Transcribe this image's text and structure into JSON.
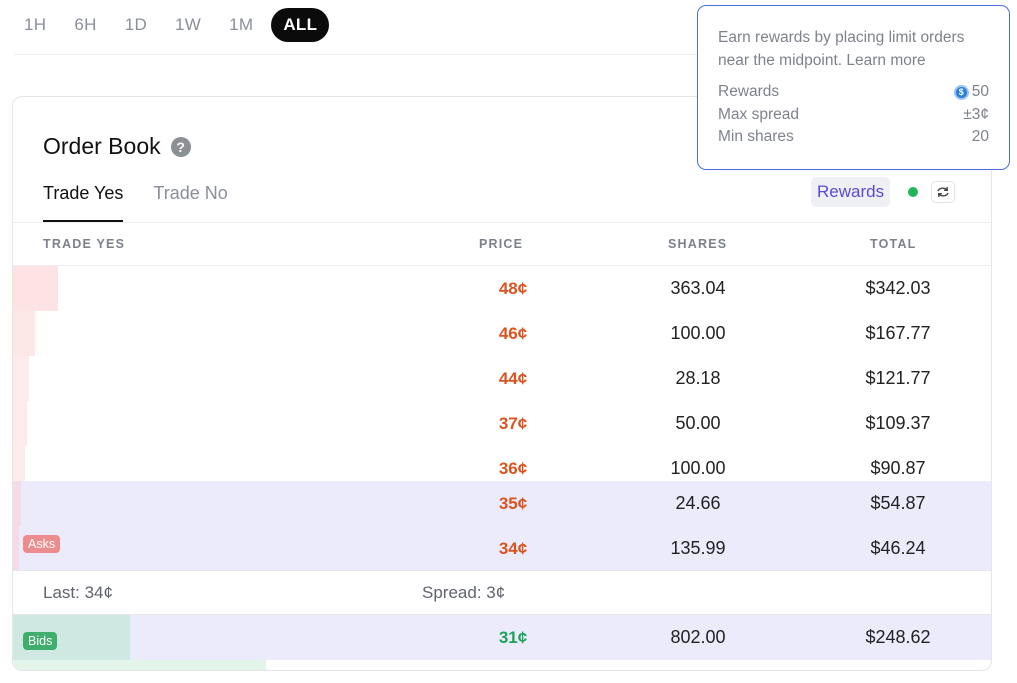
{
  "timeframes": [
    "1H",
    "6H",
    "1D",
    "1W",
    "1M",
    "ALL"
  ],
  "active_timeframe": "ALL",
  "order_book": {
    "title": "Order Book",
    "tabs": [
      "Trade Yes",
      "Trade No"
    ],
    "active_tab": "Trade Yes",
    "rewards_label": "Rewards",
    "columns": [
      "TRADE YES",
      "PRICE",
      "SHARES",
      "TOTAL"
    ],
    "asks": [
      {
        "price": "48¢",
        "shares": "363.04",
        "total": "$342.03"
      },
      {
        "price": "46¢",
        "shares": "100.00",
        "total": "$167.77"
      },
      {
        "price": "44¢",
        "shares": "28.18",
        "total": "$121.77"
      },
      {
        "price": "37¢",
        "shares": "50.00",
        "total": "$109.37"
      },
      {
        "price": "36¢",
        "shares": "100.00",
        "total": "$90.87"
      },
      {
        "price": "35¢",
        "shares": "24.66",
        "total": "$54.87"
      },
      {
        "price": "34¢",
        "shares": "135.99",
        "total": "$46.24"
      }
    ],
    "asks_badge": "Asks",
    "last": "Last: 34¢",
    "spread": "Spread: 3¢",
    "bids": [
      {
        "price": "31¢",
        "shares": "802.00",
        "total": "$248.62"
      }
    ],
    "bids_badge": "Bids"
  },
  "rewards_popover": {
    "text_line1": "Earn rewards by placing limit orders",
    "text_line2": "near the midpoint. Learn more",
    "rewards_label": "Rewards",
    "rewards_value": "50",
    "max_spread_label": "Max spread",
    "max_spread_value": "±3¢",
    "min_shares_label": "Min shares",
    "min_shares_value": "20"
  },
  "colors": {
    "ask_price": "#d9541f",
    "bid_price": "#1fa35a",
    "ask_depth": "#fde3e3",
    "bid_depth": "#cfe9e2",
    "reward_highlight": "#ebebfb",
    "popover_border": "#4b6fd8"
  },
  "icons": [
    "help-icon",
    "refresh-icon",
    "coin-icon"
  ]
}
